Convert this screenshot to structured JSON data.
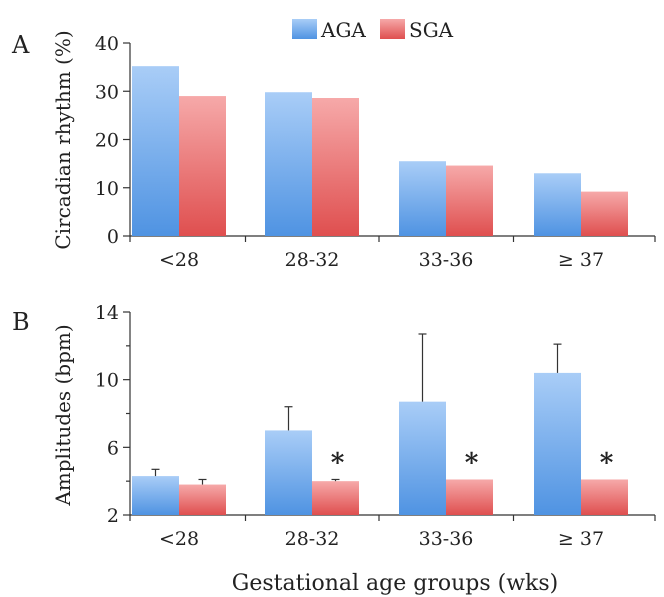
{
  "figure": {
    "xlabel": "Gestational age groups (wks)"
  },
  "legend": {
    "entries": [
      {
        "name": "AGA",
        "color_top": "#a9cdf7",
        "color_bottom": "#4f93e2"
      },
      {
        "name": "SGA",
        "color_top": "#f6a9a9",
        "color_bottom": "#df4f4f"
      }
    ]
  },
  "chart_data": [
    {
      "panel_label": "A",
      "type": "bar",
      "categories": [
        "<28",
        "28-32",
        "33-36",
        "≥ 37"
      ],
      "ylabel": "Circadian rhythm (%)",
      "ylim": [
        0,
        40
      ],
      "yticks": [
        0,
        10,
        20,
        30,
        40
      ],
      "legend_position": "top-center",
      "grid": false,
      "series": [
        {
          "name": "AGA",
          "values": [
            35.2,
            29.8,
            15.5,
            13.0
          ]
        },
        {
          "name": "SGA",
          "values": [
            29.0,
            28.6,
            14.6,
            9.2
          ]
        }
      ]
    },
    {
      "panel_label": "B",
      "type": "bar",
      "categories": [
        "<28",
        "28-32",
        "33-36",
        "≥ 37"
      ],
      "ylabel": "Amplitudes (bpm)",
      "ylim": [
        2,
        14
      ],
      "yticks": [
        2,
        6,
        10,
        14
      ],
      "minor_yticks": [
        4,
        8,
        12
      ],
      "grid": false,
      "series": [
        {
          "name": "AGA",
          "values": [
            4.3,
            7.0,
            8.7,
            10.4
          ],
          "errors": [
            0.4,
            1.4,
            4.0,
            1.7
          ]
        },
        {
          "name": "SGA",
          "values": [
            3.8,
            4.0,
            4.1,
            4.1
          ],
          "errors": [
            0.3,
            0.1,
            0.0,
            0.0
          ]
        }
      ],
      "significance_markers": [
        {
          "category": "28-32",
          "series": "SGA",
          "label": "*"
        },
        {
          "category": "33-36",
          "series": "SGA",
          "label": "*"
        },
        {
          "category": "≥ 37",
          "series": "SGA",
          "label": "*"
        }
      ]
    }
  ]
}
